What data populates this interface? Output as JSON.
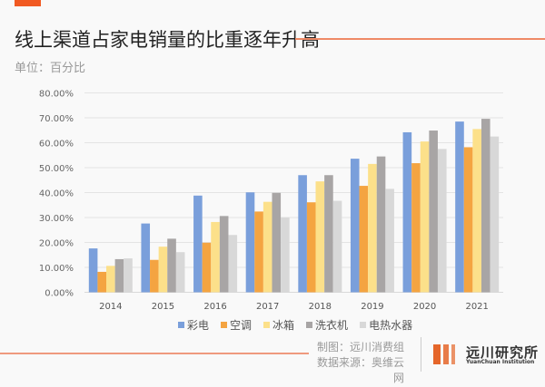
{
  "header": {
    "title": "线上渠道占家电销量的比重逐年升高",
    "unit": "单位：百分比"
  },
  "chart_data": {
    "type": "bar",
    "title": "线上渠道占家电销量的比重逐年升高",
    "xlabel": "",
    "ylabel": "单位：百分比",
    "ylim": [
      0,
      80
    ],
    "ytick_step": 10,
    "ytick_format": "percent_2dp",
    "grid": true,
    "legend_position": "bottom",
    "categories": [
      "2014",
      "2015",
      "2016",
      "2017",
      "2018",
      "2019",
      "2020",
      "2021"
    ],
    "series": [
      {
        "name": "彩电",
        "color": "#7a9fdb",
        "values": [
          17.6,
          27.6,
          38.8,
          40.1,
          47.0,
          53.6,
          64.2,
          68.5
        ]
      },
      {
        "name": "空调",
        "color": "#f4a441",
        "values": [
          8.2,
          13.0,
          19.9,
          32.4,
          36.1,
          42.7,
          51.8,
          58.2
        ]
      },
      {
        "name": "冰箱",
        "color": "#fce08a",
        "values": [
          10.6,
          18.3,
          28.2,
          36.3,
          44.5,
          51.5,
          60.5,
          65.5
        ]
      },
      {
        "name": "洗衣机",
        "color": "#a8a5a5",
        "values": [
          13.3,
          21.5,
          30.6,
          39.9,
          47.0,
          54.5,
          64.9,
          69.6
        ]
      },
      {
        "name": "电热水器",
        "color": "#d8d8d8",
        "values": [
          13.6,
          16.1,
          23.0,
          30.0,
          36.7,
          41.5,
          57.5,
          62.5
        ]
      }
    ]
  },
  "footer": {
    "credit_line1": "制图：远川消费组",
    "credit_line2": "数据来源：奥维云网",
    "logo_name": "远川研究所",
    "logo_sub": "YuanChuan Institution",
    "accent_color": "#f15a22"
  }
}
